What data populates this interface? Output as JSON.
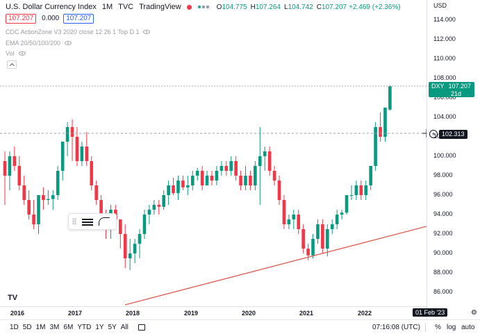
{
  "header": {
    "title": "U.S. Dollar Currency Index",
    "interval": "1M",
    "exchange": "TVC",
    "source": "TradingView",
    "ohlc": {
      "o_label": "O",
      "o": "104.775",
      "h_label": "H",
      "h": "107.264",
      "l_label": "L",
      "l": "104.742",
      "c_label": "C",
      "c": "107.207",
      "change": "+2.469 (+2.36%)"
    },
    "sell_price": "107.207",
    "spread": "0.000",
    "buy_price": "107.207"
  },
  "indicators": [
    {
      "label": "CDC ActionZone V3 2020 close 12 26 1 Top D 1"
    },
    {
      "label": "EMA 20/50/100/200"
    },
    {
      "label": "Vol"
    }
  ],
  "price_axis": {
    "currency": "USD",
    "ticks": [
      "114.000",
      "112.000",
      "110.000",
      "108.000",
      "106.000",
      "104.000",
      "102.000",
      "100.000",
      "98.000",
      "96.000",
      "94.000",
      "92.000",
      "90.000",
      "88.000",
      "86.000"
    ],
    "last_label": {
      "symbol": "DXY",
      "price": "107.207",
      "countdown": "21d 18h"
    },
    "crosshair_label": "102.313"
  },
  "time_axis": {
    "ticks": [
      "2016",
      "2017",
      "2018",
      "2019",
      "2020",
      "2021",
      "2022"
    ],
    "crosshair_date": "01 Feb '23"
  },
  "bottom_bar": {
    "ranges": [
      "1D",
      "5D",
      "1M",
      "3M",
      "6M",
      "YTD",
      "1Y",
      "5Y",
      "All"
    ],
    "clock": "07:16:08 (UTC)",
    "percent": "%",
    "log": "log",
    "auto": "auto"
  },
  "colors": {
    "up": "#089981",
    "down": "#f23645",
    "trendline": "#e05a4f"
  },
  "chart_data": {
    "type": "candlestick",
    "ylim": [
      85,
      115
    ],
    "candles": [
      [
        99.5,
        100.5,
        95.0,
        98.0
      ],
      [
        98.0,
        100.5,
        96.5,
        100.0
      ],
      [
        100.0,
        101.0,
        98.5,
        99.0
      ],
      [
        99.0,
        100.0,
        96.5,
        97.0
      ],
      [
        97.0,
        98.0,
        95.0,
        95.5
      ],
      [
        95.5,
        96.5,
        93.5,
        94.0
      ],
      [
        94.0,
        95.5,
        92.5,
        93.0
      ],
      [
        93.0,
        96.0,
        92.0,
        96.0
      ],
      [
        96.0,
        96.8,
        94.5,
        95.5
      ],
      [
        95.5,
        96.5,
        95.0,
        95.6
      ],
      [
        95.6,
        96.5,
        94.5,
        96.0
      ],
      [
        96.0,
        99.0,
        95.5,
        98.5
      ],
      [
        98.5,
        101.5,
        97.5,
        101.5
      ],
      [
        101.5,
        103.5,
        100.0,
        103.0
      ],
      [
        103.0,
        103.8,
        99.5,
        102.0
      ],
      [
        102.0,
        103.0,
        99.0,
        99.5
      ],
      [
        99.5,
        101.5,
        99.0,
        101.0
      ],
      [
        101.0,
        102.5,
        99.0,
        99.5
      ],
      [
        99.5,
        100.0,
        96.5,
        97.0
      ],
      [
        97.0,
        97.5,
        95.0,
        95.5
      ],
      [
        95.5,
        96.0,
        93.5,
        94.0
      ],
      [
        94.0,
        94.5,
        91.5,
        93.0
      ],
      [
        93.0,
        95.0,
        91.5,
        94.5
      ],
      [
        94.5,
        95.0,
        92.5,
        93.5
      ],
      [
        93.5,
        93.5,
        90.5,
        92.0
      ],
      [
        92.0,
        93.0,
        88.5,
        89.5
      ],
      [
        89.5,
        91.5,
        88.3,
        90.0
      ],
      [
        90.0,
        91.5,
        89.0,
        91.0
      ],
      [
        91.0,
        92.5,
        89.5,
        92.0
      ],
      [
        92.0,
        94.5,
        91.5,
        94.0
      ],
      [
        94.0,
        95.0,
        93.0,
        94.5
      ],
      [
        94.5,
        95.5,
        94.0,
        95.0
      ],
      [
        95.0,
        95.5,
        94.0,
        94.8
      ],
      [
        94.8,
        96.5,
        94.5,
        96.0
      ],
      [
        96.0,
        97.5,
        95.0,
        97.0
      ],
      [
        97.0,
        97.8,
        96.0,
        96.2
      ],
      [
        96.2,
        98.0,
        95.5,
        97.5
      ],
      [
        97.5,
        98.0,
        96.5,
        96.8
      ],
      [
        96.8,
        98.0,
        96.0,
        97.0
      ],
      [
        97.0,
        98.5,
        96.5,
        98.0
      ],
      [
        98.0,
        98.8,
        97.5,
        98.5
      ],
      [
        98.5,
        99.0,
        96.5,
        97.0
      ],
      [
        97.0,
        98.5,
        97.0,
        98.0
      ],
      [
        98.0,
        98.5,
        97.0,
        97.5
      ],
      [
        97.5,
        99.0,
        97.0,
        98.5
      ],
      [
        98.5,
        99.5,
        98.0,
        99.0
      ],
      [
        99.0,
        99.5,
        98.0,
        98.5
      ],
      [
        98.5,
        100.0,
        98.0,
        99.5
      ],
      [
        99.5,
        100.0,
        97.5,
        98.0
      ],
      [
        98.0,
        98.5,
        96.5,
        97.0
      ],
      [
        97.0,
        99.0,
        96.5,
        98.0
      ],
      [
        98.0,
        98.5,
        96.5,
        97.0
      ],
      [
        97.0,
        99.5,
        96.5,
        99.0
      ],
      [
        99.0,
        103.0,
        95.0,
        100.0
      ],
      [
        100.0,
        101.0,
        98.5,
        100.5
      ],
      [
        100.5,
        101.0,
        98.0,
        98.5
      ],
      [
        98.5,
        99.0,
        97.0,
        97.5
      ],
      [
        97.5,
        98.0,
        95.0,
        95.5
      ],
      [
        95.5,
        96.0,
        92.5,
        93.0
      ],
      [
        93.0,
        94.0,
        92.5,
        93.5
      ],
      [
        93.5,
        94.5,
        92.5,
        94.0
      ],
      [
        94.0,
        94.5,
        92.0,
        92.5
      ],
      [
        92.5,
        93.0,
        90.0,
        90.5
      ],
      [
        90.5,
        91.0,
        89.3,
        89.8
      ],
      [
        89.8,
        92.0,
        89.5,
        91.5
      ],
      [
        91.5,
        93.5,
        91.0,
        93.0
      ],
      [
        93.0,
        93.5,
        90.0,
        90.5
      ],
      [
        90.5,
        93.0,
        89.7,
        92.5
      ],
      [
        92.5,
        93.5,
        92.0,
        93.0
      ],
      [
        93.0,
        94.5,
        92.5,
        94.0
      ],
      [
        94.0,
        94.5,
        93.5,
        94.2
      ],
      [
        94.2,
        96.0,
        94.0,
        96.0
      ],
      [
        96.0,
        97.0,
        95.5,
        96.0
      ],
      [
        96.0,
        97.5,
        95.5,
        97.0
      ],
      [
        97.0,
        97.5,
        95.5,
        96.0
      ],
      [
        96.0,
        97.5,
        95.5,
        97.0
      ],
      [
        97.0,
        99.0,
        96.5,
        99.0
      ],
      [
        99.0,
        103.5,
        98.5,
        103.0
      ],
      [
        103.0,
        104.5,
        101.5,
        102.0
      ],
      [
        102.0,
        105.0,
        101.5,
        105.0
      ],
      [
        104.8,
        107.3,
        104.7,
        107.2
      ]
    ]
  }
}
